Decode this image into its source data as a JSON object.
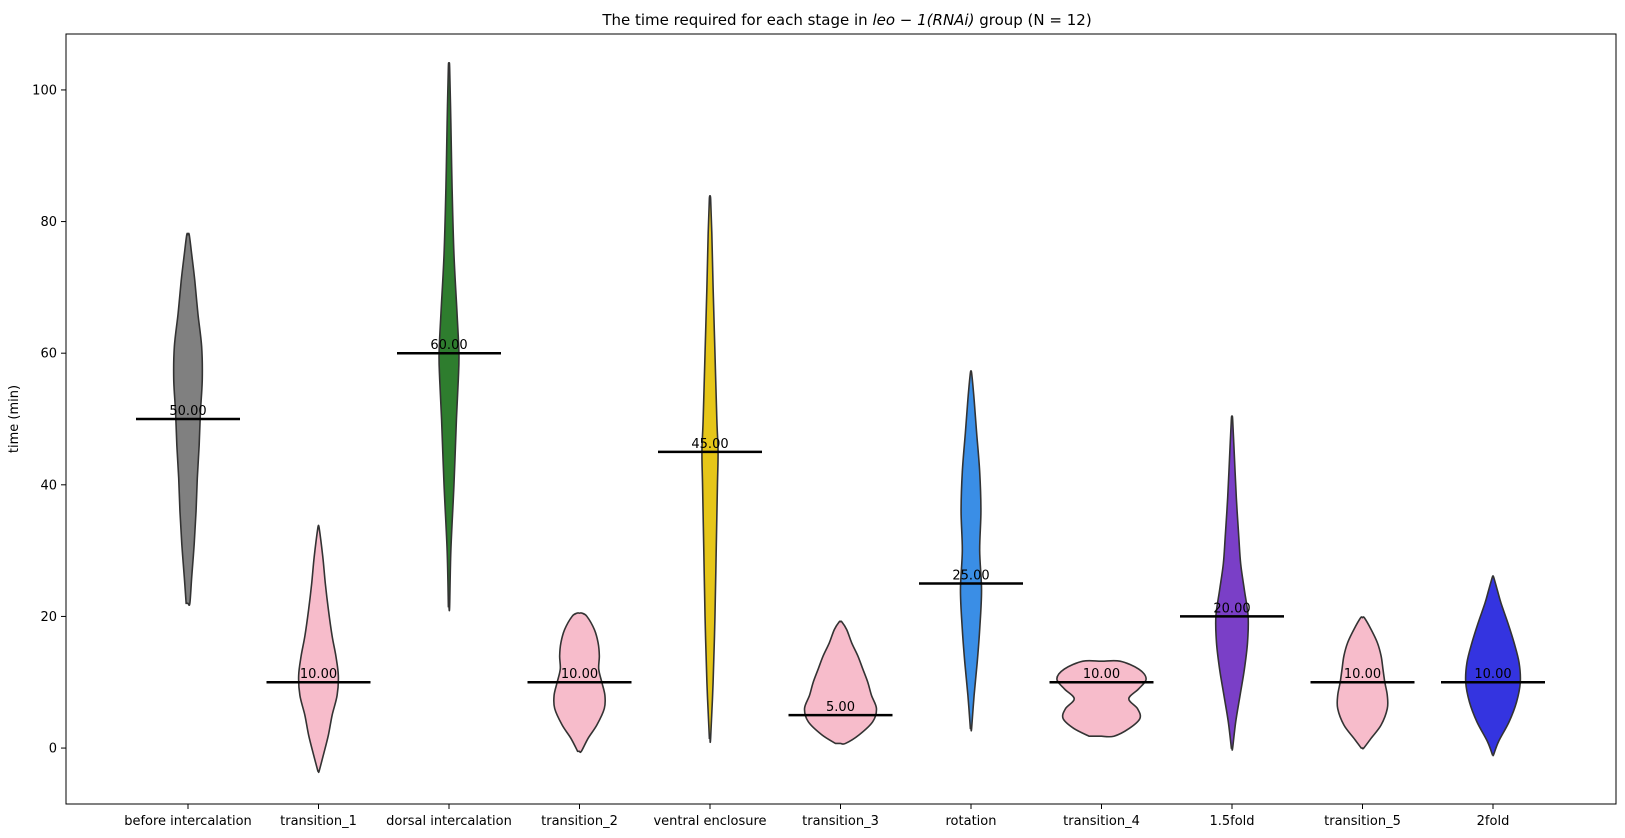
{
  "chart_data": {
    "type": "violin",
    "title": "The time required for each stage in leo − 1(RNAi) group (N = 12)",
    "title_parts": {
      "prefix": "The time required for each stage in ",
      "math": "leo − 1(RNAi)",
      "suffix": " group (N = 12)"
    },
    "xlabel": "",
    "ylabel": "time (min)",
    "ylim": [
      -8.5,
      108.5
    ],
    "yticks": [
      0,
      20,
      40,
      60,
      80,
      100
    ],
    "grid": false,
    "categories": [
      "before intercalation",
      "transition_1",
      "dorsal intercalation",
      "transition_2",
      "ventral enclosure",
      "transition_3",
      "rotation",
      "transition_4",
      "1.5fold",
      "transition_5",
      "2fold"
    ],
    "violins": [
      {
        "category": "before intercalation",
        "color": "#808080",
        "median": 50,
        "median_label": "50.00",
        "profile": [
          [
            22,
            0.03
          ],
          [
            26,
            0.06
          ],
          [
            31,
            0.1
          ],
          [
            36,
            0.13
          ],
          [
            41,
            0.15
          ],
          [
            46,
            0.18
          ],
          [
            51,
            0.2
          ],
          [
            56,
            0.23
          ],
          [
            61,
            0.22
          ],
          [
            66,
            0.16
          ],
          [
            71,
            0.11
          ],
          [
            75,
            0.06
          ],
          [
            78,
            0.02
          ]
        ]
      },
      {
        "category": "transition_1",
        "color": "#f7bccb",
        "median": 10,
        "median_label": "10.00",
        "profile": [
          [
            -3.5,
            0.01
          ],
          [
            -1,
            0.08
          ],
          [
            2,
            0.16
          ],
          [
            5,
            0.22
          ],
          [
            8,
            0.3
          ],
          [
            11,
            0.32
          ],
          [
            14,
            0.28
          ],
          [
            17,
            0.22
          ],
          [
            21,
            0.16
          ],
          [
            25,
            0.11
          ],
          [
            29,
            0.07
          ],
          [
            33.5,
            0.01
          ]
        ]
      },
      {
        "category": "dorsal intercalation",
        "color": "#2e7d2e",
        "median": 60,
        "median_label": "60.00",
        "profile": [
          [
            21.5,
            0.01
          ],
          [
            30,
            0.03
          ],
          [
            40,
            0.08
          ],
          [
            50,
            0.12
          ],
          [
            56,
            0.15
          ],
          [
            60,
            0.16
          ],
          [
            66,
            0.13
          ],
          [
            75,
            0.08
          ],
          [
            85,
            0.05
          ],
          [
            95,
            0.03
          ],
          [
            103.5,
            0.01
          ]
        ]
      },
      {
        "category": "transition_2",
        "color": "#f7bccb",
        "median": 10,
        "median_label": "10.00",
        "profile": [
          [
            -0.5,
            0.03
          ],
          [
            1.5,
            0.14
          ],
          [
            3.5,
            0.28
          ],
          [
            6,
            0.4
          ],
          [
            8,
            0.41
          ],
          [
            10,
            0.36
          ],
          [
            12,
            0.31
          ],
          [
            14,
            0.32
          ],
          [
            16,
            0.3
          ],
          [
            18,
            0.24
          ],
          [
            20,
            0.12
          ],
          [
            20.5,
            0.04
          ]
        ]
      },
      {
        "category": "ventral enclosure",
        "color": "#e6c619",
        "median": 45,
        "median_label": "45.00",
        "profile": [
          [
            1.5,
            0.01
          ],
          [
            10,
            0.05
          ],
          [
            20,
            0.08
          ],
          [
            30,
            0.1
          ],
          [
            40,
            0.12
          ],
          [
            45,
            0.13
          ],
          [
            50,
            0.11
          ],
          [
            60,
            0.08
          ],
          [
            70,
            0.05
          ],
          [
            78,
            0.03
          ],
          [
            83.5,
            0.01
          ]
        ]
      },
      {
        "category": "transition_3",
        "color": "#f7bccb",
        "median": 5,
        "median_label": "5.00",
        "profile": [
          [
            0.7,
            0.08
          ],
          [
            2,
            0.3
          ],
          [
            4,
            0.52
          ],
          [
            6,
            0.58
          ],
          [
            8,
            0.5
          ],
          [
            10,
            0.44
          ],
          [
            12,
            0.36
          ],
          [
            14,
            0.28
          ],
          [
            16,
            0.18
          ],
          [
            18,
            0.1
          ],
          [
            19.2,
            0.02
          ]
        ]
      },
      {
        "category": "rotation",
        "color": "#3a8ee6",
        "median": 25,
        "median_label": "25.00",
        "profile": [
          [
            3,
            0.01
          ],
          [
            8,
            0.05
          ],
          [
            13,
            0.1
          ],
          [
            18,
            0.14
          ],
          [
            24,
            0.17
          ],
          [
            30,
            0.14
          ],
          [
            36,
            0.16
          ],
          [
            42,
            0.14
          ],
          [
            48,
            0.09
          ],
          [
            53,
            0.05
          ],
          [
            57,
            0.01
          ]
        ]
      },
      {
        "category": "transition_4",
        "color": "#f7bccb",
        "median": 10,
        "median_label": "10.00",
        "profile": [
          [
            1.8,
            0.2
          ],
          [
            3,
            0.45
          ],
          [
            4.5,
            0.62
          ],
          [
            6,
            0.58
          ],
          [
            7.5,
            0.44
          ],
          [
            9,
            0.6
          ],
          [
            10.5,
            0.72
          ],
          [
            12,
            0.6
          ],
          [
            13.2,
            0.3
          ]
        ]
      },
      {
        "category": "1.5fold",
        "color": "#7a3fc7",
        "median": 20,
        "median_label": "20.00",
        "profile": [
          [
            0,
            0.01
          ],
          [
            4,
            0.06
          ],
          [
            8,
            0.13
          ],
          [
            12,
            0.2
          ],
          [
            16,
            0.25
          ],
          [
            20,
            0.26
          ],
          [
            24,
            0.2
          ],
          [
            28,
            0.14
          ],
          [
            32,
            0.11
          ],
          [
            38,
            0.07
          ],
          [
            44,
            0.04
          ],
          [
            50,
            0.01
          ]
        ]
      },
      {
        "category": "transition_5",
        "color": "#f7bccb",
        "median": 10,
        "median_label": "10.00",
        "profile": [
          [
            0,
            0.02
          ],
          [
            1.5,
            0.14
          ],
          [
            3.5,
            0.3
          ],
          [
            6,
            0.4
          ],
          [
            8,
            0.4
          ],
          [
            10,
            0.36
          ],
          [
            12,
            0.33
          ],
          [
            14,
            0.3
          ],
          [
            16,
            0.24
          ],
          [
            18,
            0.14
          ],
          [
            19.8,
            0.03
          ]
        ]
      },
      {
        "category": "2fold",
        "color": "#3434e0",
        "median": 10,
        "median_label": "10.00",
        "profile": [
          [
            -1,
            0.01
          ],
          [
            1,
            0.09
          ],
          [
            4,
            0.26
          ],
          [
            7,
            0.38
          ],
          [
            10,
            0.44
          ],
          [
            13,
            0.42
          ],
          [
            16,
            0.34
          ],
          [
            19,
            0.24
          ],
          [
            22,
            0.13
          ],
          [
            24,
            0.07
          ],
          [
            26,
            0.01
          ]
        ]
      }
    ]
  }
}
